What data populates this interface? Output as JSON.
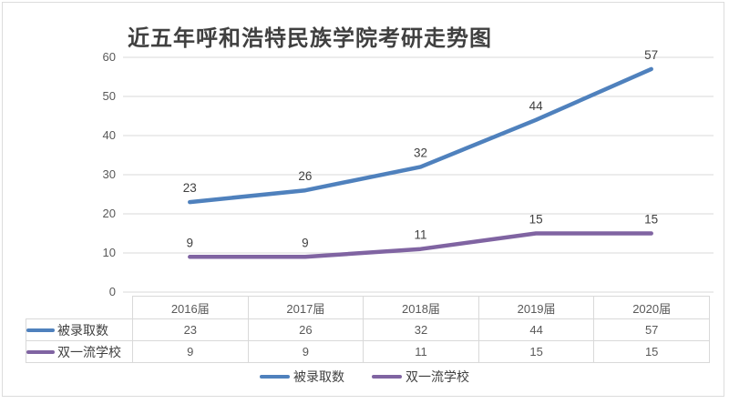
{
  "chart_data": {
    "type": "line",
    "title": "近五年呼和浩特民族学院考研走势图",
    "categories": [
      "2016届",
      "2017届",
      "2018届",
      "2019届",
      "2020届"
    ],
    "series": [
      {
        "name": "被录取数",
        "values": [
          23,
          26,
          32,
          44,
          57
        ],
        "color": "#4F81BD"
      },
      {
        "name": "双一流学校",
        "values": [
          9,
          9,
          11,
          15,
          15
        ],
        "color": "#8064A2"
      }
    ],
    "yticks": [
      0,
      10,
      20,
      30,
      40,
      50,
      60
    ],
    "ylim": [
      0,
      60
    ],
    "xlabel": "",
    "ylabel": "",
    "grid": true,
    "data_labels": true,
    "has_data_table": true,
    "legend_position": "bottom",
    "colors": {
      "grid": "#D9D9D9",
      "axis_text": "#595959",
      "data_label_text": "#404040",
      "table_border": "#D9D9D9",
      "title_text": "#404040",
      "frame_border": "#DCDCDC"
    }
  }
}
